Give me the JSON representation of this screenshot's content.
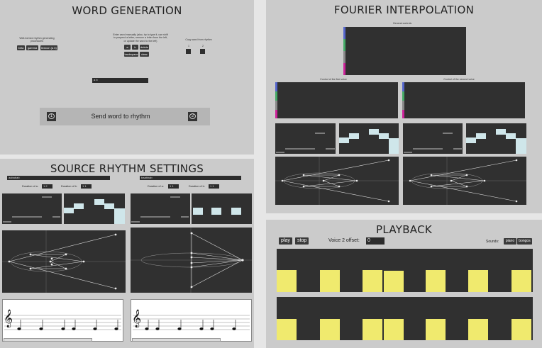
{
  "word_generation": {
    "title": "WORD GENERATION",
    "wellformed_caption": "Well-formed rhythm generating procedures",
    "procedure_buttons": [
      "beta",
      "gamma",
      "lexicon (a b)"
    ],
    "manual_caption": "Enter word manually (also, try to type it, use shift to prepend a letter, remove a letter from the left, or update the word to the left)",
    "letter_buttons": [
      "a",
      "b",
      "delete"
    ],
    "edit_buttons": [
      "backspace",
      "clear"
    ],
    "copy_caption": "Copy word from rhythm",
    "copy_numbers": [
      "1",
      "2"
    ],
    "word_field_value": "a b",
    "send_label": "Send word to rhythm",
    "send_numbers": [
      "1",
      "2"
    ]
  },
  "source_rhythm": {
    "title": "SOURCE RHYTHM SETTINGS",
    "left": {
      "word": "aababab",
      "dur_a_label": "Duration of a:",
      "dur_a": "1 2",
      "dur_b_label": "Duration of b:",
      "dur_b": "1 1"
    },
    "right": {
      "word": "baabbab",
      "dur_a_label": "Duration of a:",
      "dur_a": "1 1",
      "dur_b_label": "Duration of b:",
      "dur_b": "1 1"
    },
    "clef": "𝄞"
  },
  "fourier": {
    "title": "FOURIER INTERPOLATION",
    "general_caption": "General controls",
    "voice1_caption": "Control of the first voice",
    "voice2_caption": "Control of the second voice",
    "swatch_colors": [
      "#5566cc",
      "#44aa66",
      "#888888",
      "#cc2299"
    ]
  },
  "playback": {
    "title": "PLAYBACK",
    "play_label": "play",
    "stop_label": "stop",
    "offset_label": "Voice 2 offset:",
    "offset_value": "0",
    "sounds_label": "Sounds:",
    "sound_buttons": [
      "piano",
      "bongos"
    ],
    "accent_color": "#f0ea6e"
  }
}
